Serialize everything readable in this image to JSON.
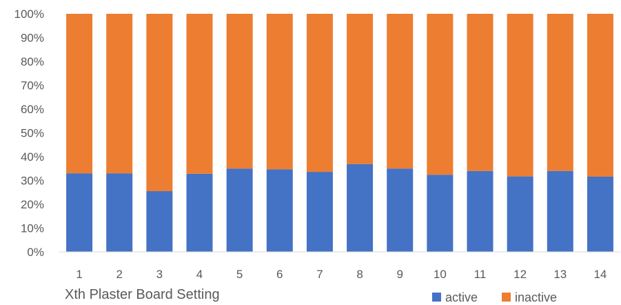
{
  "chart_data": {
    "type": "bar",
    "stacked": true,
    "percent_stacked": true,
    "categories": [
      "1",
      "2",
      "3",
      "4",
      "5",
      "6",
      "7",
      "8",
      "9",
      "10",
      "11",
      "12",
      "13",
      "14"
    ],
    "series": [
      {
        "name": "active",
        "color": "#4472C4",
        "values": [
          33.0,
          33.0,
          25.5,
          32.8,
          35.0,
          34.7,
          33.6,
          36.9,
          35.0,
          32.4,
          34.0,
          31.7,
          34.0,
          31.6
        ]
      },
      {
        "name": "inactive",
        "color": "#ED7D31",
        "values": [
          67.0,
          67.0,
          74.5,
          67.2,
          65.0,
          65.3,
          66.4,
          63.1,
          65.0,
          67.6,
          66.0,
          68.3,
          66.0,
          68.4
        ]
      }
    ],
    "y_ticks": [
      "0%",
      "10%",
      "20%",
      "30%",
      "40%",
      "50%",
      "60%",
      "70%",
      "80%",
      "90%",
      "100%"
    ],
    "ylim": [
      0,
      100
    ],
    "xlabel": "Xth Plaster Board Setting",
    "ylabel": "",
    "grid": false,
    "legend_position": "bottom-right"
  }
}
